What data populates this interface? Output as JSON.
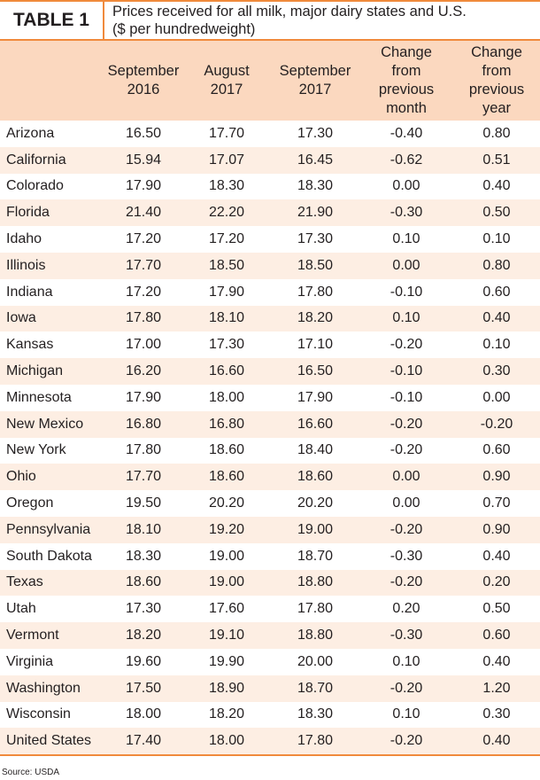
{
  "header": {
    "label": "TABLE 1",
    "title": "Prices received for all milk, major dairy states and U.S.\n($ per hundredweight)"
  },
  "table": {
    "columns": [
      "",
      "September\n2016",
      "August\n2017",
      "September\n2017",
      "Change\nfrom\nprevious\nmonth",
      "Change\nfrom\nprevious\nyear"
    ],
    "rows": [
      [
        "Arizona",
        "16.50",
        "17.70",
        "17.30",
        "-0.40",
        "0.80"
      ],
      [
        "California",
        "15.94",
        "17.07",
        "16.45",
        "-0.62",
        "0.51"
      ],
      [
        "Colorado",
        "17.90",
        "18.30",
        "18.30",
        "0.00",
        "0.40"
      ],
      [
        "Florida",
        "21.40",
        "22.20",
        "21.90",
        "-0.30",
        "0.50"
      ],
      [
        "Idaho",
        "17.20",
        "17.20",
        "17.30",
        "0.10",
        "0.10"
      ],
      [
        "Illinois",
        "17.70",
        "18.50",
        "18.50",
        "0.00",
        "0.80"
      ],
      [
        "Indiana",
        "17.20",
        "17.90",
        "17.80",
        "-0.10",
        "0.60"
      ],
      [
        "Iowa",
        "17.80",
        "18.10",
        "18.20",
        "0.10",
        "0.40"
      ],
      [
        "Kansas",
        "17.00",
        "17.30",
        "17.10",
        "-0.20",
        "0.10"
      ],
      [
        "Michigan",
        "16.20",
        "16.60",
        "16.50",
        "-0.10",
        "0.30"
      ],
      [
        "Minnesota",
        "17.90",
        "18.00",
        "17.90",
        "-0.10",
        "0.00"
      ],
      [
        "New Mexico",
        "16.80",
        "16.80",
        "16.60",
        "-0.20",
        "-0.20"
      ],
      [
        "New York",
        "17.80",
        "18.60",
        "18.40",
        "-0.20",
        "0.60"
      ],
      [
        "Ohio",
        "17.70",
        "18.60",
        "18.60",
        "0.00",
        "0.90"
      ],
      [
        "Oregon",
        "19.50",
        "20.20",
        "20.20",
        "0.00",
        "0.70"
      ],
      [
        "Pennsylvania",
        "18.10",
        "19.20",
        "19.00",
        "-0.20",
        "0.90"
      ],
      [
        "South Dakota",
        "18.30",
        "19.00",
        "18.70",
        "-0.30",
        "0.40"
      ],
      [
        "Texas",
        "18.60",
        "19.00",
        "18.80",
        "-0.20",
        "0.20"
      ],
      [
        "Utah",
        "17.30",
        "17.60",
        "17.80",
        "0.20",
        "0.50"
      ],
      [
        "Vermont",
        "18.20",
        "19.10",
        "18.80",
        "-0.30",
        "0.60"
      ],
      [
        "Virginia",
        "19.60",
        "19.90",
        "20.00",
        "0.10",
        "0.40"
      ],
      [
        "Washington",
        "17.50",
        "18.90",
        "18.70",
        "-0.20",
        "1.20"
      ],
      [
        "Wisconsin",
        "18.00",
        "18.20",
        "18.30",
        "0.10",
        "0.30"
      ],
      [
        "United States",
        "17.40",
        "18.00",
        "17.80",
        "-0.20",
        "0.40"
      ]
    ]
  },
  "footer": {
    "source": "Source: USDA"
  }
}
